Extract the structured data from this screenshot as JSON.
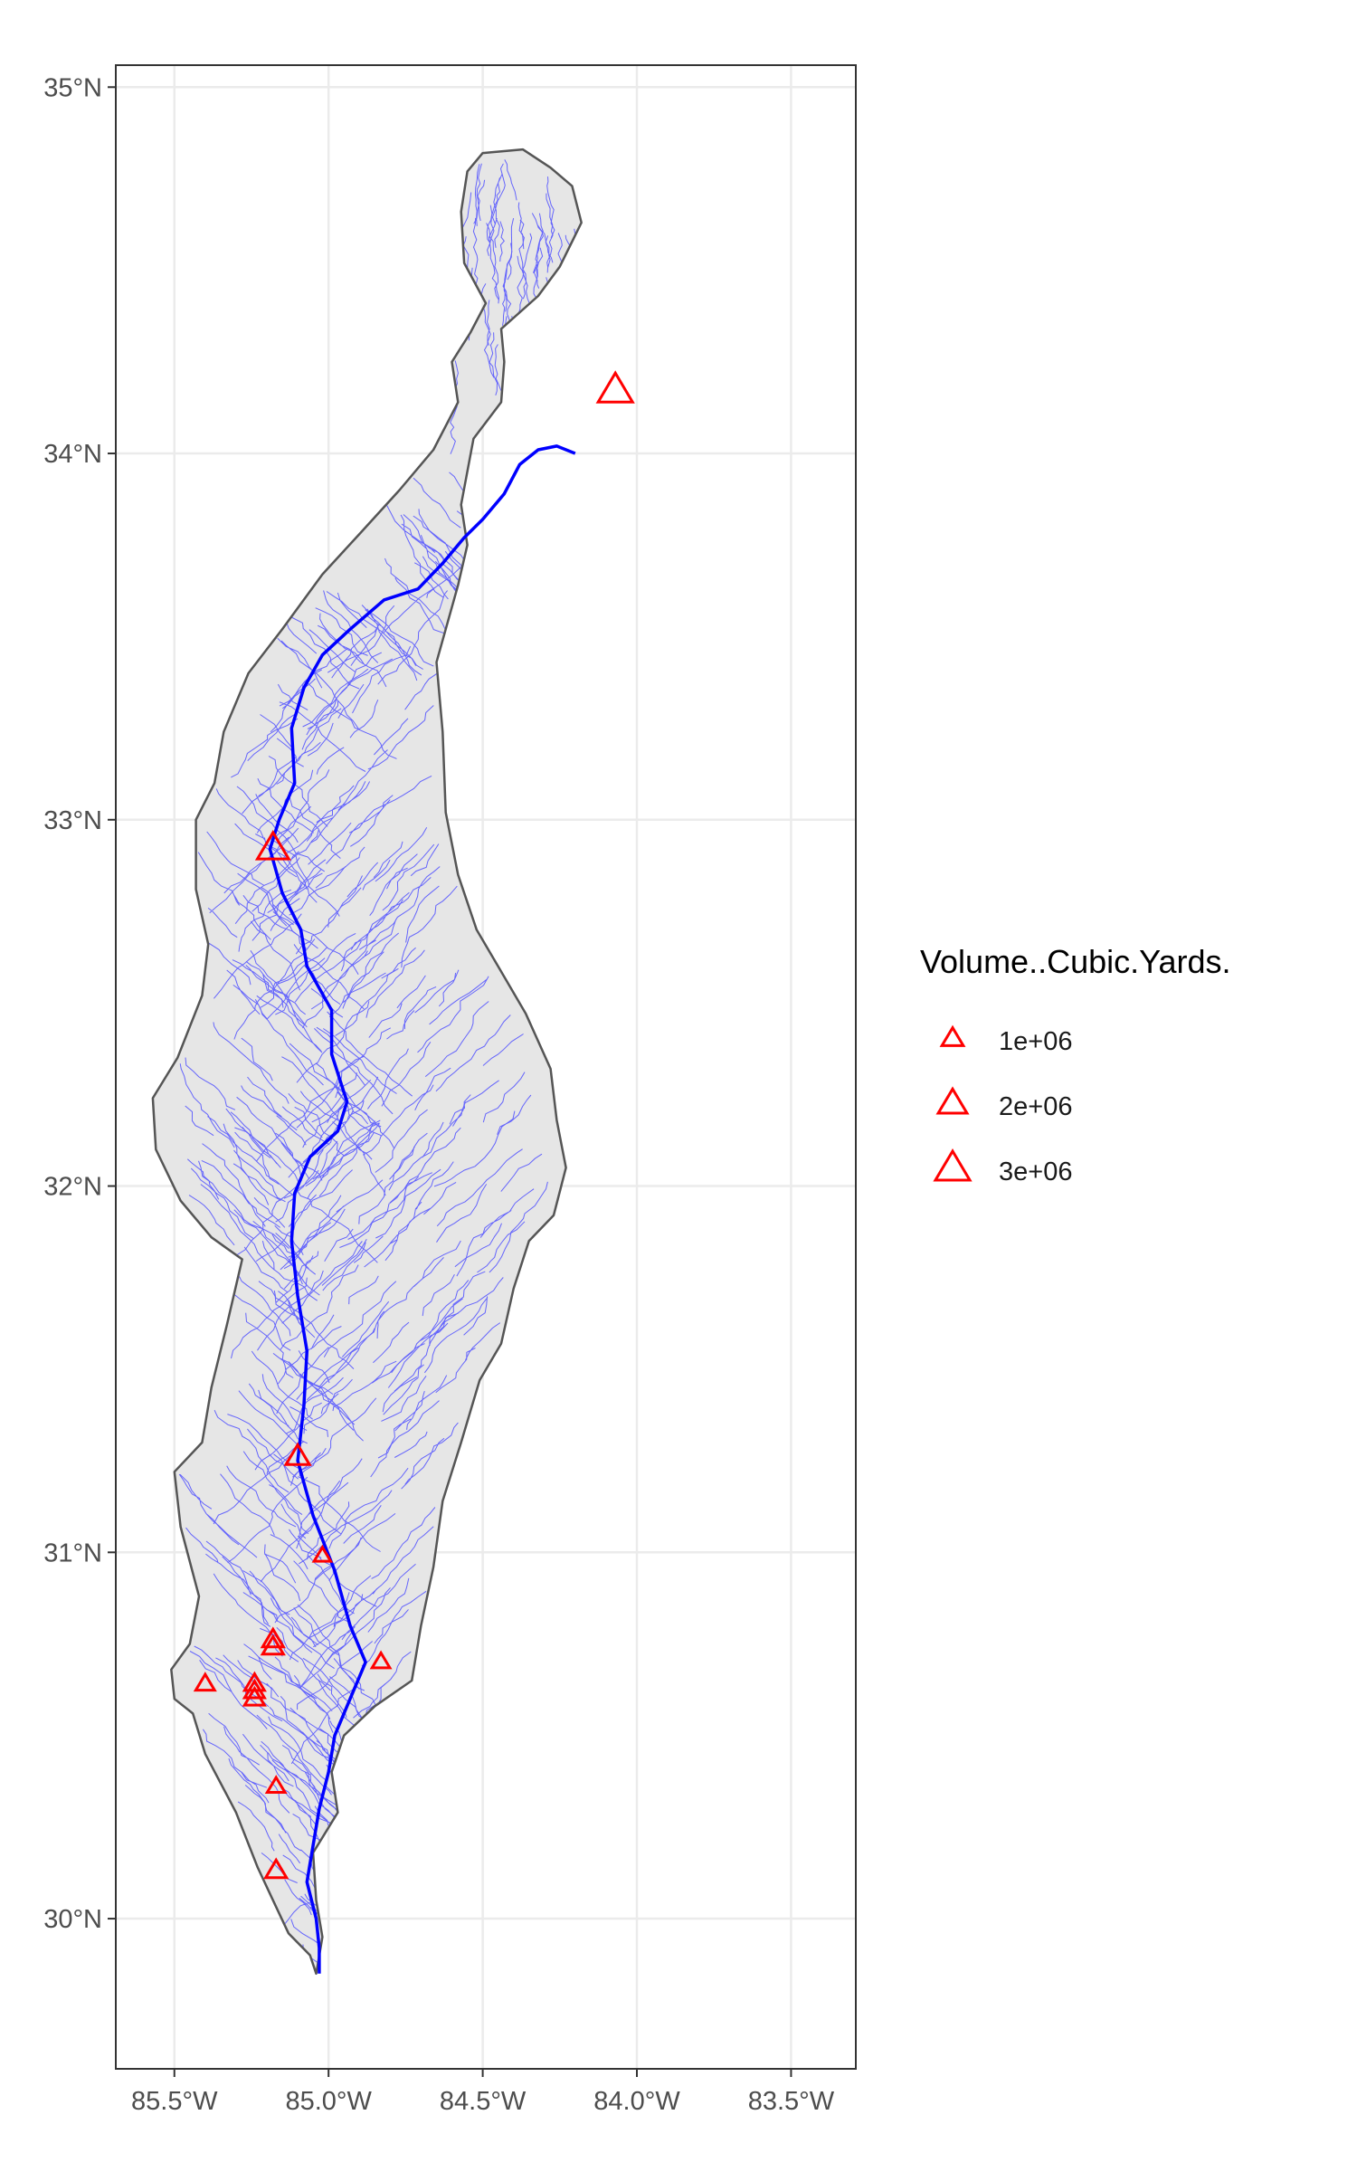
{
  "chart_data": {
    "type": "map",
    "map_kind": "watershed basin with stream network and point markers",
    "x_axis": {
      "ticks": [
        -85.5,
        -85.0,
        -84.5,
        -84.0,
        -83.5
      ],
      "tick_labels": [
        "85.5°W",
        "85.0°W",
        "84.5°W",
        "84.0°W",
        "83.5°W"
      ],
      "lim": [
        -85.69,
        -83.29
      ]
    },
    "y_axis": {
      "ticks": [
        30,
        31,
        32,
        33,
        34,
        35
      ],
      "tick_labels": [
        "30°N",
        "31°N",
        "32°N",
        "33°N",
        "34°N",
        "35°N"
      ],
      "lim": [
        29.59,
        35.06
      ]
    },
    "grid": true,
    "legend": {
      "title": "Volume..Cubic.Yards.",
      "placement": "right",
      "entries": [
        {
          "label": "1e+06",
          "value": 1000000
        },
        {
          "label": "2e+06",
          "value": 2000000
        },
        {
          "label": "3e+06",
          "value": 3000000
        }
      ]
    },
    "basin_outline": [
      [
        -84.55,
        34.77
      ],
      [
        -84.5,
        34.82
      ],
      [
        -84.37,
        34.83
      ],
      [
        -84.28,
        34.78
      ],
      [
        -84.21,
        34.73
      ],
      [
        -84.18,
        34.63
      ],
      [
        -84.25,
        34.51
      ],
      [
        -84.32,
        34.43
      ],
      [
        -84.44,
        34.34
      ],
      [
        -84.43,
        34.25
      ],
      [
        -84.44,
        34.14
      ],
      [
        -84.53,
        34.04
      ],
      [
        -84.57,
        33.86
      ],
      [
        -84.55,
        33.75
      ],
      [
        -84.58,
        33.64
      ],
      [
        -84.65,
        33.43
      ],
      [
        -84.63,
        33.24
      ],
      [
        -84.62,
        33.02
      ],
      [
        -84.58,
        32.85
      ],
      [
        -84.52,
        32.7
      ],
      [
        -84.45,
        32.6
      ],
      [
        -84.36,
        32.47
      ],
      [
        -84.28,
        32.32
      ],
      [
        -84.26,
        32.18
      ],
      [
        -84.23,
        32.05
      ],
      [
        -84.27,
        31.92
      ],
      [
        -84.35,
        31.85
      ],
      [
        -84.4,
        31.72
      ],
      [
        -84.44,
        31.57
      ],
      [
        -84.51,
        31.47
      ],
      [
        -84.57,
        31.3
      ],
      [
        -84.63,
        31.14
      ],
      [
        -84.66,
        30.96
      ],
      [
        -84.7,
        30.8
      ],
      [
        -84.73,
        30.65
      ],
      [
        -84.85,
        30.58
      ],
      [
        -84.95,
        30.5
      ],
      [
        -84.99,
        30.4
      ],
      [
        -84.97,
        30.29
      ],
      [
        -85.05,
        30.18
      ],
      [
        -85.04,
        30.05
      ],
      [
        -85.02,
        29.95
      ],
      [
        -85.04,
        29.85
      ],
      [
        -85.06,
        29.9
      ],
      [
        -85.13,
        29.96
      ],
      [
        -85.18,
        30.05
      ],
      [
        -85.23,
        30.14
      ],
      [
        -85.3,
        30.29
      ],
      [
        -85.4,
        30.45
      ],
      [
        -85.44,
        30.56
      ],
      [
        -85.5,
        30.6
      ],
      [
        -85.51,
        30.68
      ],
      [
        -85.45,
        30.75
      ],
      [
        -85.42,
        30.88
      ],
      [
        -85.48,
        31.07
      ],
      [
        -85.5,
        31.22
      ],
      [
        -85.41,
        31.3
      ],
      [
        -85.38,
        31.45
      ],
      [
        -85.33,
        31.62
      ],
      [
        -85.28,
        31.8
      ],
      [
        -85.38,
        31.86
      ],
      [
        -85.48,
        31.96
      ],
      [
        -85.56,
        32.1
      ],
      [
        -85.57,
        32.24
      ],
      [
        -85.49,
        32.35
      ],
      [
        -85.41,
        32.52
      ],
      [
        -85.39,
        32.66
      ],
      [
        -85.43,
        32.81
      ],
      [
        -85.43,
        33.0
      ],
      [
        -85.37,
        33.1
      ],
      [
        -85.34,
        33.24
      ],
      [
        -85.26,
        33.4
      ],
      [
        -85.15,
        33.52
      ],
      [
        -85.02,
        33.67
      ],
      [
        -84.9,
        33.78
      ],
      [
        -84.77,
        33.9
      ],
      [
        -84.66,
        34.01
      ],
      [
        -84.58,
        34.14
      ],
      [
        -84.6,
        34.25
      ],
      [
        -84.54,
        34.33
      ],
      [
        -84.49,
        34.41
      ],
      [
        -84.56,
        34.52
      ],
      [
        -84.57,
        34.66
      ]
    ],
    "main_river": [
      [
        -84.2,
        34.0
      ],
      [
        -84.26,
        34.02
      ],
      [
        -84.32,
        34.01
      ],
      [
        -84.38,
        33.97
      ],
      [
        -84.43,
        33.89
      ],
      [
        -84.5,
        33.82
      ],
      [
        -84.56,
        33.77
      ],
      [
        -84.63,
        33.7
      ],
      [
        -84.71,
        33.63
      ],
      [
        -84.82,
        33.6
      ],
      [
        -84.93,
        33.52
      ],
      [
        -85.02,
        33.45
      ],
      [
        -85.08,
        33.36
      ],
      [
        -85.12,
        33.25
      ],
      [
        -85.11,
        33.1
      ],
      [
        -85.16,
        33.0
      ],
      [
        -85.19,
        32.92
      ],
      [
        -85.15,
        32.8
      ],
      [
        -85.09,
        32.7
      ],
      [
        -85.07,
        32.6
      ],
      [
        -84.99,
        32.48
      ],
      [
        -84.99,
        32.36
      ],
      [
        -84.94,
        32.23
      ],
      [
        -84.97,
        32.15
      ],
      [
        -85.06,
        32.08
      ],
      [
        -85.11,
        31.98
      ],
      [
        -85.12,
        31.85
      ],
      [
        -85.1,
        31.7
      ],
      [
        -85.07,
        31.55
      ],
      [
        -85.08,
        31.4
      ],
      [
        -85.1,
        31.25
      ],
      [
        -85.05,
        31.1
      ],
      [
        -84.98,
        30.95
      ],
      [
        -84.93,
        30.8
      ],
      [
        -84.88,
        30.7
      ],
      [
        -84.93,
        30.6
      ],
      [
        -84.98,
        30.5
      ],
      [
        -85.0,
        30.4
      ],
      [
        -85.03,
        30.3
      ],
      [
        -85.05,
        30.2
      ],
      [
        -85.07,
        30.1
      ],
      [
        -85.04,
        30.0
      ],
      [
        -85.03,
        29.92
      ],
      [
        -85.03,
        29.85
      ]
    ],
    "points": [
      {
        "lon": -84.07,
        "lat": 34.17,
        "volume": 3000000
      },
      {
        "lon": -85.18,
        "lat": 32.92,
        "volume": 2500000
      },
      {
        "lon": -85.1,
        "lat": 31.26,
        "volume": 1400000
      },
      {
        "lon": -85.02,
        "lat": 30.99,
        "volume": 700000
      },
      {
        "lon": -85.18,
        "lat": 30.76,
        "volume": 1100000
      },
      {
        "lon": -85.18,
        "lat": 30.74,
        "volume": 1100000
      },
      {
        "lon": -84.83,
        "lat": 30.7,
        "volume": 800000
      },
      {
        "lon": -85.4,
        "lat": 30.64,
        "volume": 900000
      },
      {
        "lon": -85.24,
        "lat": 30.64,
        "volume": 1000000
      },
      {
        "lon": -85.24,
        "lat": 30.62,
        "volume": 1000000
      },
      {
        "lon": -85.24,
        "lat": 30.6,
        "volume": 1000000
      },
      {
        "lon": -85.17,
        "lat": 30.36,
        "volume": 800000
      },
      {
        "lon": -85.17,
        "lat": 30.13,
        "volume": 1100000
      }
    ]
  },
  "style": {
    "basin_fill": "#e6e6e6",
    "basin_stroke": "#555555",
    "river_color": "#0000ff",
    "stream_color": "#4d4dff",
    "marker_color": "#ff0000",
    "grid_color": "#ebebeb",
    "panel_border": "#333333"
  }
}
